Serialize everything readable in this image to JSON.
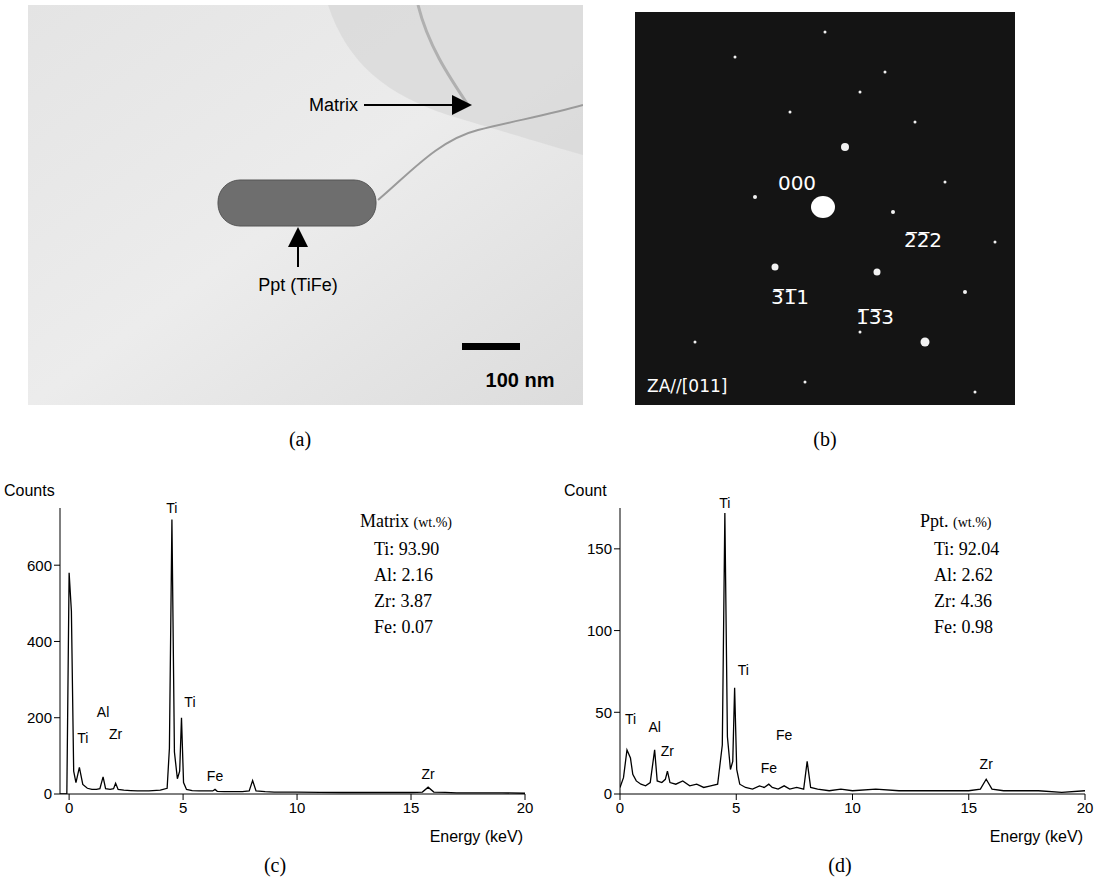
{
  "panels": [
    {
      "letter": "(a)",
      "type": "image",
      "labels": {
        "matrix": "Matrix",
        "precipitate": "Ppt (TiFe)",
        "scale_bar": "100 nm"
      }
    },
    {
      "letter": "(b)",
      "type": "diffraction_pattern",
      "spot_labels": {
        "center": "000",
        "right": "2̅2̅2",
        "left": "3̅1̅1",
        "lower": "1̅3̅3"
      },
      "zone_axis": "ZA//[011]"
    }
  ],
  "chart_data": [
    {
      "type": "line",
      "letter": "(c)",
      "y_label": "Counts",
      "x_label": "Energy (keV)",
      "color": "#000000",
      "grid": false,
      "xlim": [
        -0.4,
        20
      ],
      "xticks": [
        0,
        5,
        10,
        15,
        20
      ],
      "ylim": [
        0,
        750
      ],
      "yticks": [
        0,
        200,
        400,
        600
      ],
      "x": [
        -0.4,
        -0.1,
        0,
        0.1,
        0.2,
        0.3,
        0.45,
        0.6,
        0.8,
        1.0,
        1.2,
        1.35,
        1.49,
        1.6,
        1.8,
        1.95,
        2.04,
        2.15,
        2.4,
        2.7,
        3.0,
        3.5,
        4.0,
        4.3,
        4.4,
        4.51,
        4.62,
        4.75,
        4.85,
        4.93,
        5.02,
        5.15,
        5.4,
        5.7,
        6.0,
        6.3,
        6.4,
        6.5,
        6.8,
        7.2,
        7.6,
        7.9,
        8.05,
        8.2,
        8.6,
        9.0,
        10,
        11,
        12,
        13,
        14,
        15,
        15.5,
        15.75,
        16.0,
        16.5,
        17,
        18,
        19,
        20
      ],
      "values": [
        0,
        0,
        580,
        480,
        60,
        30,
        70,
        25,
        15,
        12,
        12,
        14,
        45,
        14,
        12,
        14,
        28,
        12,
        10,
        9,
        8,
        8,
        10,
        15,
        120,
        720,
        110,
        40,
        60,
        200,
        30,
        12,
        9,
        8,
        8,
        8,
        12,
        7,
        6,
        6,
        6,
        8,
        35,
        8,
        6,
        5,
        5,
        4,
        4,
        4,
        4,
        4,
        5,
        18,
        5,
        4,
        3,
        3,
        3,
        2
      ],
      "annotations": [
        {
          "text": "Ti",
          "x": 0.6,
          "y": 120
        },
        {
          "text": "Al",
          "x": 1.49,
          "y": 190
        },
        {
          "text": "Zr",
          "x": 2.04,
          "y": 130
        },
        {
          "text": "Ti",
          "x": 4.51,
          "y": 725
        },
        {
          "text": "Ti",
          "x": 5.3,
          "y": 215
        },
        {
          "text": "Fe",
          "x": 6.4,
          "y": 20
        },
        {
          "text": "Zr",
          "x": 15.75,
          "y": 25
        }
      ],
      "composition": {
        "title": "Matrix",
        "unit": "(wt.%)",
        "lines": [
          "Ti: 93.90",
          "Al: 2.16",
          "Zr: 3.87",
          "Fe: 0.07"
        ]
      }
    },
    {
      "type": "line",
      "letter": "(d)",
      "y_label": "Count",
      "x_label": "Energy (keV)",
      "color": "#000000",
      "grid": false,
      "xlim": [
        0,
        20
      ],
      "xticks": [
        0,
        5,
        10,
        15,
        20
      ],
      "ylim": [
        0,
        175
      ],
      "yticks": [
        0,
        50,
        100,
        150
      ],
      "x": [
        0,
        0.15,
        0.3,
        0.45,
        0.55,
        0.7,
        0.9,
        1.1,
        1.3,
        1.49,
        1.6,
        1.8,
        1.95,
        2.04,
        2.15,
        2.4,
        2.7,
        3.0,
        3.3,
        3.6,
        3.9,
        4.2,
        4.4,
        4.51,
        4.62,
        4.75,
        4.85,
        4.93,
        5.02,
        5.15,
        5.4,
        5.7,
        6.0,
        6.2,
        6.4,
        6.55,
        6.8,
        7.06,
        7.3,
        7.6,
        7.9,
        8.05,
        8.2,
        8.5,
        9.0,
        9.5,
        10,
        11,
        12,
        13,
        14,
        15,
        15.5,
        15.75,
        16.0,
        16.5,
        17,
        18,
        19,
        20
      ],
      "values": [
        4,
        10,
        27,
        22,
        12,
        8,
        6,
        5,
        7,
        27,
        8,
        7,
        9,
        14,
        7,
        6,
        8,
        5,
        6,
        4,
        5,
        6,
        30,
        172,
        35,
        15,
        20,
        65,
        15,
        6,
        4,
        3,
        5,
        4,
        6,
        4,
        3,
        5,
        3,
        4,
        3,
        20,
        4,
        3,
        2,
        3,
        2,
        3,
        2,
        2,
        2,
        2,
        3,
        9,
        3,
        2,
        2,
        2,
        1,
        2
      ],
      "annotations": [
        {
          "text": "Ti",
          "x": 0.45,
          "y": 40
        },
        {
          "text": "Al",
          "x": 1.49,
          "y": 35
        },
        {
          "text": "Zr",
          "x": 2.04,
          "y": 20
        },
        {
          "text": "Ti",
          "x": 4.51,
          "y": 172
        },
        {
          "text": "Ti",
          "x": 5.3,
          "y": 70
        },
        {
          "text": "Fe",
          "x": 6.4,
          "y": 10
        },
        {
          "text": "Fe",
          "x": 7.06,
          "y": 30
        },
        {
          "text": "Zr",
          "x": 15.75,
          "y": 12
        }
      ],
      "composition": {
        "title": "Ppt.",
        "unit": "(wt.%)",
        "lines": [
          "Ti: 92.04",
          "Al: 2.62",
          "Zr: 4.36",
          "Fe: 0.98"
        ]
      }
    }
  ]
}
